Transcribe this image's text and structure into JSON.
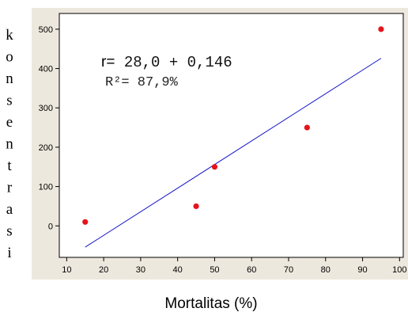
{
  "chart_data": {
    "type": "scatter",
    "xlabel": "Mortalitas (%)",
    "ylabel_letters": [
      "k",
      "o",
      "n",
      "s",
      "e",
      "n",
      "t",
      "r",
      "a",
      "s",
      "i"
    ],
    "x_ticks": [
      10,
      20,
      30,
      40,
      50,
      60,
      70,
      80,
      90,
      100
    ],
    "y_ticks": [
      0,
      100,
      200,
      300,
      400,
      500
    ],
    "xlim": [
      8,
      101
    ],
    "ylim": [
      -80,
      540
    ],
    "points": [
      {
        "x": 15,
        "y": 10
      },
      {
        "x": 45,
        "y": 50
      },
      {
        "x": 50,
        "y": 150
      },
      {
        "x": 75,
        "y": 250
      },
      {
        "x": 95,
        "y": 500
      }
    ],
    "fit_line": {
      "x_start": 15,
      "x_end": 95,
      "y_start": -54,
      "y_end": 426
    },
    "annotation_prefix": "r=",
    "annotation_line1": " 28,0 + 0,146",
    "annotation_line2": "R²= 87,9%",
    "colors": {
      "plot_bg": "#ffffff",
      "outer_bg": "#ede8dd",
      "point": "#e4141c",
      "line": "#1414c8"
    },
    "grid": false
  }
}
